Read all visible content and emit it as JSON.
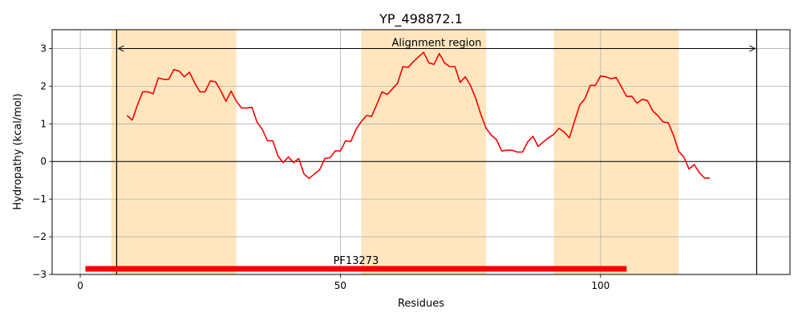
{
  "chart_data": {
    "type": "line",
    "title": "YP_498872.1",
    "xlabel": "Residues",
    "ylabel": "Hydropathy (kcal/mol)",
    "xlim": [
      -5.4,
      136.4
    ],
    "ylim": [
      -3,
      3.5
    ],
    "x_ticks": [
      0,
      50,
      100
    ],
    "y_ticks": [
      -3,
      -2,
      -1,
      0,
      1,
      2,
      3
    ],
    "grid": true,
    "line_color": "#ff0000",
    "band_color": "#ffe6bf",
    "shaded_regions": [
      [
        6,
        30
      ],
      [
        54,
        78
      ],
      [
        91,
        115
      ]
    ],
    "alignment_region": {
      "label": "Alignment region",
      "start": 7,
      "end": 130,
      "y": 3.0
    },
    "domain_bar": {
      "label": "PF13273",
      "start": 1,
      "end": 105,
      "y": -2.85,
      "color": "#ff0000"
    },
    "series": [
      {
        "x": [
          9,
          10,
          11,
          12,
          13,
          14,
          15,
          16,
          17,
          18,
          19,
          20,
          21,
          22,
          23,
          24,
          25,
          26,
          27,
          28,
          29,
          30,
          31,
          32,
          33,
          34,
          35,
          36,
          37,
          38,
          39,
          40,
          41,
          42,
          43,
          44,
          45,
          46,
          47,
          48,
          49,
          50,
          51,
          52,
          53,
          54,
          55,
          56,
          57,
          58,
          59,
          60,
          61,
          62,
          63,
          64,
          65,
          66,
          67,
          68,
          69,
          70,
          71,
          72,
          73,
          74,
          75,
          76,
          77,
          78,
          79,
          80,
          81,
          82,
          83,
          84,
          85,
          86,
          87,
          88,
          89,
          90,
          91,
          92,
          93,
          94,
          95,
          96,
          97,
          98,
          99,
          100,
          101,
          102,
          103,
          104,
          105,
          106,
          107,
          108,
          109,
          110,
          111,
          112,
          113,
          114,
          115,
          116,
          117,
          118,
          119,
          120,
          121
        ],
        "values": [
          1.22,
          1.1,
          1.5,
          1.85,
          1.85,
          1.8,
          2.22,
          2.18,
          2.18,
          2.44,
          2.4,
          2.25,
          2.37,
          2.08,
          1.85,
          1.85,
          2.14,
          2.12,
          1.88,
          1.6,
          1.87,
          1.6,
          1.42,
          1.42,
          1.44,
          1.04,
          0.85,
          0.55,
          0.55,
          0.15,
          -0.03,
          0.12,
          -0.03,
          0.08,
          -0.33,
          -0.45,
          -0.33,
          -0.22,
          0.08,
          0.1,
          0.28,
          0.28,
          0.55,
          0.53,
          0.85,
          1.06,
          1.22,
          1.2,
          1.52,
          1.85,
          1.78,
          1.93,
          2.08,
          2.52,
          2.5,
          2.65,
          2.78,
          2.9,
          2.62,
          2.58,
          2.87,
          2.62,
          2.52,
          2.52,
          2.1,
          2.25,
          2.02,
          1.68,
          1.25,
          0.88,
          0.7,
          0.58,
          0.28,
          0.3,
          0.3,
          0.25,
          0.25,
          0.52,
          0.67,
          0.4,
          0.52,
          0.63,
          0.72,
          0.88,
          0.78,
          0.63,
          1.07,
          1.5,
          1.67,
          2.02,
          2.02,
          2.27,
          2.25,
          2.2,
          2.23,
          1.98,
          1.73,
          1.73,
          1.55,
          1.65,
          1.62,
          1.35,
          1.22,
          1.05,
          1.03,
          0.7,
          0.27,
          0.12,
          -0.2,
          -0.08,
          -0.3,
          -0.44,
          -0.44
        ]
      }
    ]
  }
}
